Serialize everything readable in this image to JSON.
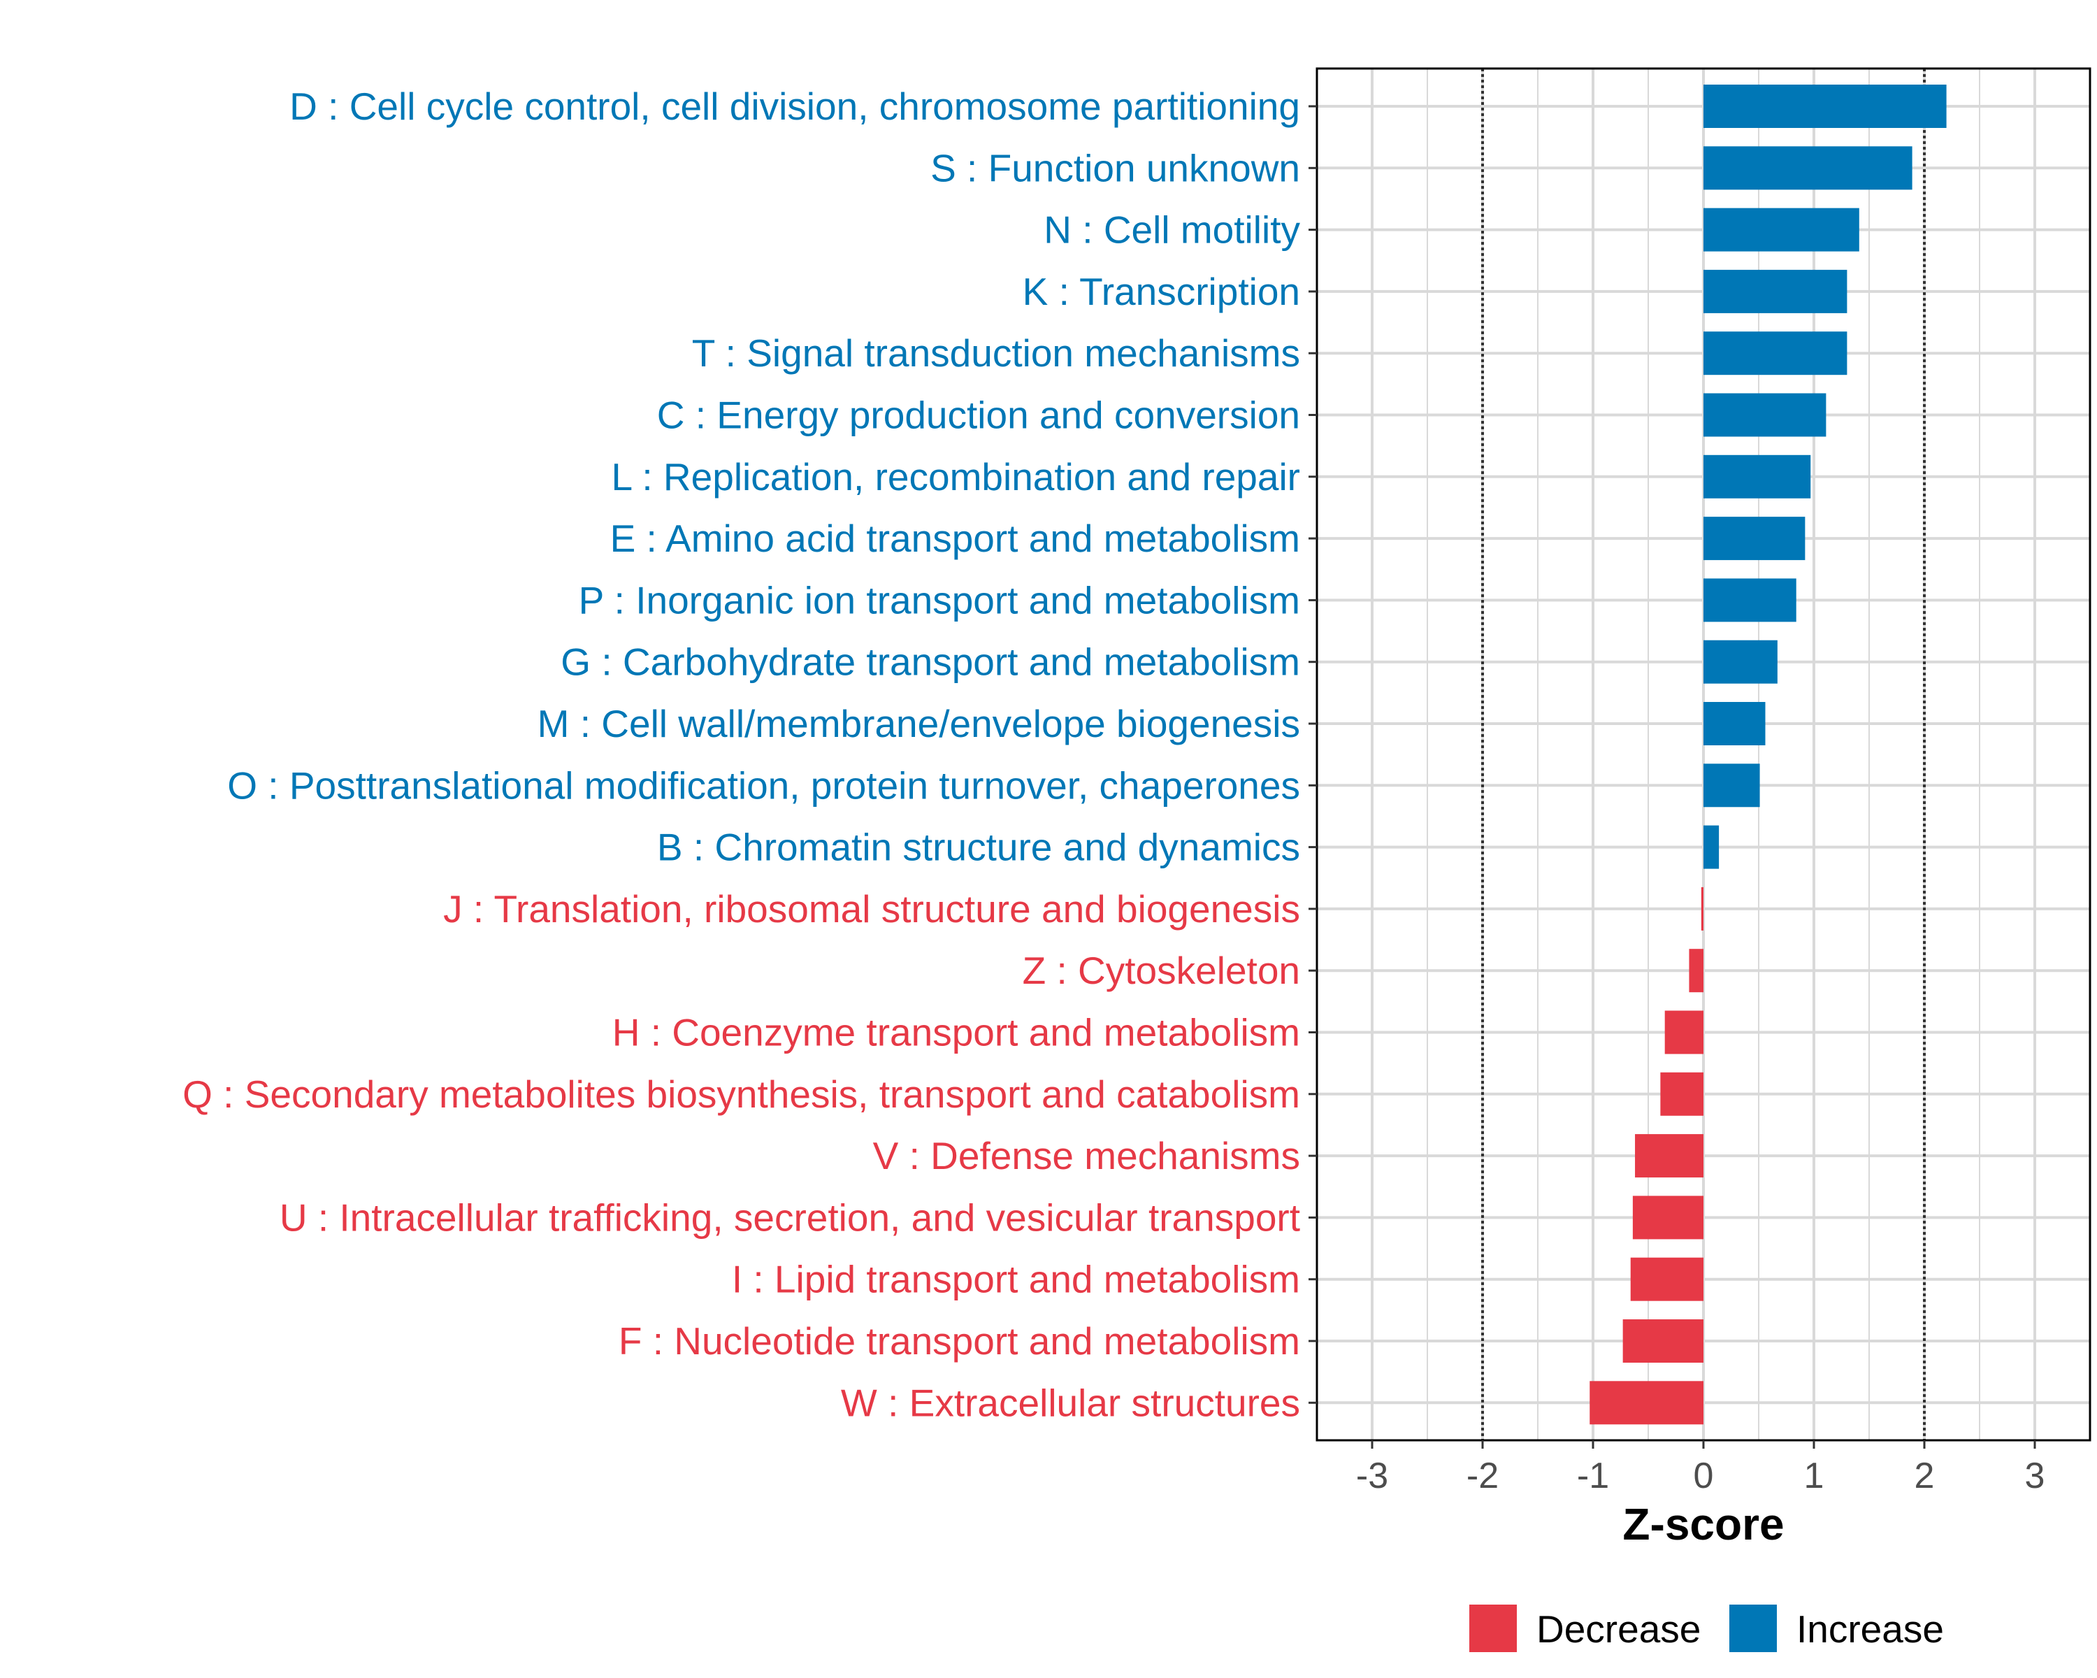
{
  "chart_data": {
    "type": "bar",
    "orientation": "horizontal",
    "title": "",
    "xlabel": "Z-score",
    "ylabel": "",
    "xlim": [
      -3.5,
      3.5
    ],
    "xticks": [
      -3,
      -2,
      -1,
      0,
      1,
      2,
      3
    ],
    "xtick_labels": [
      "-3",
      "-2",
      "-1",
      "0",
      "1",
      "2",
      "3"
    ],
    "reference_lines": [
      -2,
      2
    ],
    "grid": true,
    "legend_position": "bottom",
    "categories": [
      "D : Cell cycle control, cell division, chromosome partitioning",
      "S : Function unknown",
      "N : Cell motility",
      "K : Transcription",
      "T : Signal transduction mechanisms",
      "C : Energy production and conversion",
      "L : Replication, recombination and repair",
      "E : Amino acid transport and metabolism",
      "P : Inorganic ion transport and metabolism",
      "G : Carbohydrate transport and metabolism",
      "M : Cell wall/membrane/envelope biogenesis",
      "O : Posttranslational modification, protein turnover, chaperones",
      "B : Chromatin structure and dynamics",
      "J : Translation, ribosomal structure and biogenesis",
      "Z : Cytoskeleton",
      "H : Coenzyme transport and metabolism",
      "Q : Secondary metabolites biosynthesis, transport and catabolism",
      "V : Defense mechanisms",
      "U : Intracellular trafficking, secretion, and vesicular transport",
      "I : Lipid transport and metabolism",
      "F : Nucleotide transport and metabolism",
      "W : Extracellular structures"
    ],
    "values": [
      2.2,
      1.89,
      1.41,
      1.3,
      1.3,
      1.11,
      0.97,
      0.92,
      0.84,
      0.67,
      0.56,
      0.51,
      0.14,
      -0.02,
      -0.13,
      -0.35,
      -0.39,
      -0.62,
      -0.64,
      -0.66,
      -0.73,
      -1.03
    ],
    "groups": [
      "Increase",
      "Increase",
      "Increase",
      "Increase",
      "Increase",
      "Increase",
      "Increase",
      "Increase",
      "Increase",
      "Increase",
      "Increase",
      "Increase",
      "Increase",
      "Decrease",
      "Decrease",
      "Decrease",
      "Decrease",
      "Decrease",
      "Decrease",
      "Decrease",
      "Decrease",
      "Decrease"
    ],
    "legend": [
      {
        "label": "Decrease",
        "color": "#E63946"
      },
      {
        "label": "Increase",
        "color": "#0077B6"
      }
    ],
    "colors": {
      "Decrease": "#E63946",
      "Increase": "#0077B6"
    }
  }
}
